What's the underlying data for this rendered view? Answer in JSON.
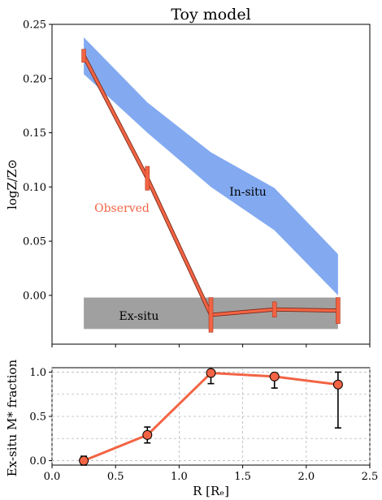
{
  "chart_data": [
    {
      "type": "line",
      "title": "Toy model",
      "ylabel": "logZ/Z⊙",
      "xlim": [
        0,
        2.5
      ],
      "ylim": [
        -0.045,
        0.25
      ],
      "yticks": [
        "−0.05",
        "0.00",
        "0.05",
        "0.10",
        "0.15",
        "0.20",
        "0.25"
      ],
      "ytick_values": [
        -0.05,
        0.0,
        0.05,
        0.1,
        0.15,
        0.2,
        0.25
      ],
      "grid": false,
      "insitu_band": {
        "label": "In-situ",
        "color": "#6495ed",
        "x": [
          0.25,
          0.75,
          1.25,
          1.75,
          2.25
        ],
        "low": [
          0.204,
          0.15,
          0.1,
          0.06,
          0.0
        ],
        "high": [
          0.238,
          0.178,
          0.132,
          0.099,
          0.038
        ]
      },
      "exsitu_band": {
        "label": "Ex-situ",
        "color": "#a0a0a0",
        "x": [
          0.25,
          2.25
        ],
        "low": -0.031,
        "high": -0.002
      },
      "observed": {
        "label": "Observed",
        "color": "#f26444",
        "x": [
          0.25,
          0.75,
          1.25,
          1.75,
          2.25
        ],
        "y": [
          0.221,
          0.108,
          -0.018,
          -0.013,
          -0.014
        ],
        "err": [
          0.006,
          0.011,
          0.016,
          0.007,
          0.012
        ]
      }
    },
    {
      "type": "line",
      "xlabel": "R [Rₑ]",
      "ylabel": "Ex-situ M* fraction",
      "xlim": [
        0,
        2.5
      ],
      "ylim": [
        -0.05,
        1.05
      ],
      "xticks": [
        "0.0",
        "0.5",
        "1.0",
        "1.5",
        "2.0",
        "2.5"
      ],
      "xtick_values": [
        0.0,
        0.5,
        1.0,
        1.5,
        2.0,
        2.5
      ],
      "yticks": [
        "0.0",
        "0.5",
        "1.0"
      ],
      "ytick_values": [
        0.0,
        0.5,
        1.0
      ],
      "grid": true,
      "grid_y": [
        0.0,
        0.25,
        0.5,
        0.75,
        1.0
      ],
      "series": {
        "color": "#f26444",
        "x": [
          0.25,
          0.75,
          1.25,
          1.75,
          2.25
        ],
        "y": [
          0.0,
          0.29,
          0.99,
          0.95,
          0.86
        ],
        "err_low": [
          0.05,
          0.09,
          0.12,
          0.13,
          0.49
        ],
        "err_high": [
          0.05,
          0.09,
          0.01,
          0.02,
          0.14
        ]
      }
    }
  ]
}
